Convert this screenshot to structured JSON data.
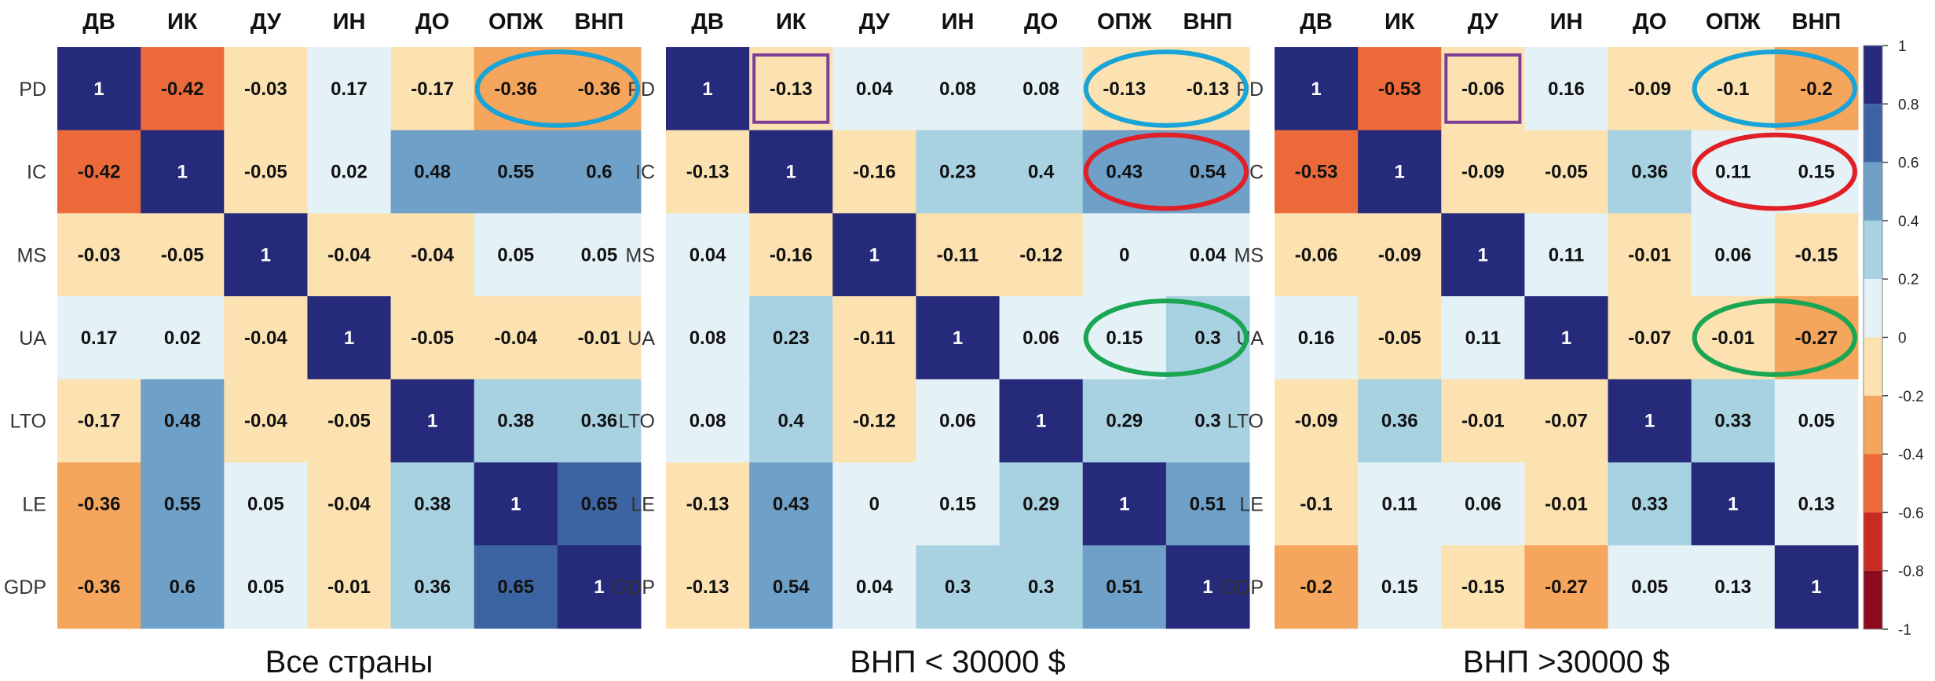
{
  "chart_data": {
    "type": "heatmap",
    "column_labels": [
      "ДВ",
      "ИК",
      "ДУ",
      "ИН",
      "ДО",
      "ОПЖ",
      "ВНП"
    ],
    "row_labels": [
      "PD",
      "IC",
      "MS",
      "UA",
      "LTO",
      "LE",
      "GDP"
    ],
    "panels": [
      {
        "title": "Все страны",
        "values": [
          [
            1,
            -0.42,
            -0.03,
            0.17,
            -0.17,
            -0.36,
            -0.36
          ],
          [
            -0.42,
            1,
            -0.05,
            0.02,
            0.48,
            0.55,
            0.6
          ],
          [
            -0.03,
            -0.05,
            1,
            -0.04,
            -0.04,
            0.05,
            0.05
          ],
          [
            0.17,
            0.02,
            -0.04,
            1,
            -0.05,
            -0.04,
            -0.01
          ],
          [
            -0.17,
            0.48,
            -0.04,
            -0.05,
            1,
            0.38,
            0.36
          ],
          [
            -0.36,
            0.55,
            0.05,
            -0.04,
            0.38,
            1,
            0.65
          ],
          [
            -0.36,
            0.6,
            0.05,
            -0.01,
            0.36,
            0.65,
            1
          ]
        ]
      },
      {
        "title": "ВНП < 30000 $",
        "values": [
          [
            1,
            -0.13,
            0.04,
            0.08,
            0.08,
            -0.13,
            -0.13
          ],
          [
            -0.13,
            1,
            -0.16,
            0.23,
            0.4,
            0.43,
            0.54
          ],
          [
            0.04,
            -0.16,
            1,
            -0.11,
            -0.12,
            0,
            0.04
          ],
          [
            0.08,
            0.23,
            -0.11,
            1,
            0.06,
            0.15,
            0.3
          ],
          [
            0.08,
            0.4,
            -0.12,
            0.06,
            1,
            0.29,
            0.3
          ],
          [
            -0.13,
            0.43,
            0,
            0.15,
            0.29,
            1,
            0.51
          ],
          [
            -0.13,
            0.54,
            0.04,
            0.3,
            0.3,
            0.51,
            1
          ]
        ]
      },
      {
        "title": "ВНП >30000 $",
        "values": [
          [
            1,
            -0.53,
            -0.06,
            0.16,
            -0.09,
            -0.1,
            -0.2
          ],
          [
            -0.53,
            1,
            -0.09,
            -0.05,
            0.36,
            0.11,
            0.15
          ],
          [
            -0.06,
            -0.09,
            1,
            0.11,
            -0.01,
            0.06,
            -0.15
          ],
          [
            0.16,
            -0.05,
            0.11,
            1,
            -0.07,
            -0.01,
            -0.27
          ],
          [
            -0.09,
            0.36,
            -0.01,
            -0.07,
            1,
            0.33,
            0.05
          ],
          [
            -0.1,
            0.11,
            0.06,
            -0.01,
            0.33,
            1,
            0.13
          ],
          [
            -0.2,
            0.15,
            -0.15,
            -0.27,
            0.05,
            0.13,
            1
          ]
        ]
      }
    ],
    "colorbar": {
      "range": [
        -1,
        1
      ],
      "ticks": [
        "1",
        "0.8",
        "0.6",
        "0.4",
        "0.2",
        "0",
        "-0.2",
        "-0.4",
        "-0.6",
        "-0.8",
        "-1"
      ],
      "bins": [
        {
          "from": 0.8,
          "to": 1.0,
          "color": "#262a7a"
        },
        {
          "from": 0.6,
          "to": 0.8,
          "color": "#3d64a2"
        },
        {
          "from": 0.4,
          "to": 0.6,
          "color": "#6fa0c7"
        },
        {
          "from": 0.2,
          "to": 0.4,
          "color": "#a8d2e2"
        },
        {
          "from": 0.0,
          "to": 0.2,
          "color": "#e4f2f7"
        },
        {
          "from": -0.2,
          "to": 0.0,
          "color": "#fce2b1"
        },
        {
          "from": -0.4,
          "to": -0.2,
          "color": "#f5a55c"
        },
        {
          "from": -0.6,
          "to": -0.4,
          "color": "#ec6a3a"
        },
        {
          "from": -0.8,
          "to": -0.6,
          "color": "#c92a22"
        },
        {
          "from": -1.0,
          "to": -0.8,
          "color": "#8c0a1e"
        }
      ]
    },
    "annotations": [
      {
        "panel": 0,
        "shape": "ellipse",
        "row": 0,
        "cols": [
          5,
          6
        ],
        "color": "#19a4d8"
      },
      {
        "panel": 1,
        "shape": "rect",
        "row": 0,
        "cols": [
          1,
          1
        ],
        "color": "#7b3f98"
      },
      {
        "panel": 1,
        "shape": "ellipse",
        "row": 0,
        "cols": [
          5,
          6
        ],
        "color": "#19a4d8"
      },
      {
        "panel": 1,
        "shape": "ellipse",
        "row": 1,
        "cols": [
          5,
          6
        ],
        "color": "#e01f26"
      },
      {
        "panel": 1,
        "shape": "ellipse",
        "row": 3,
        "cols": [
          5,
          6
        ],
        "color": "#1aa652"
      },
      {
        "panel": 2,
        "shape": "rect",
        "row": 0,
        "cols": [
          2,
          2
        ],
        "color": "#7b3f98"
      },
      {
        "panel": 2,
        "shape": "ellipse",
        "row": 0,
        "cols": [
          5,
          6
        ],
        "color": "#19a4d8"
      },
      {
        "panel": 2,
        "shape": "ellipse",
        "row": 1,
        "cols": [
          5,
          6
        ],
        "color": "#e01f26"
      },
      {
        "panel": 2,
        "shape": "ellipse",
        "row": 3,
        "cols": [
          5,
          6
        ],
        "color": "#1aa652"
      }
    ]
  }
}
